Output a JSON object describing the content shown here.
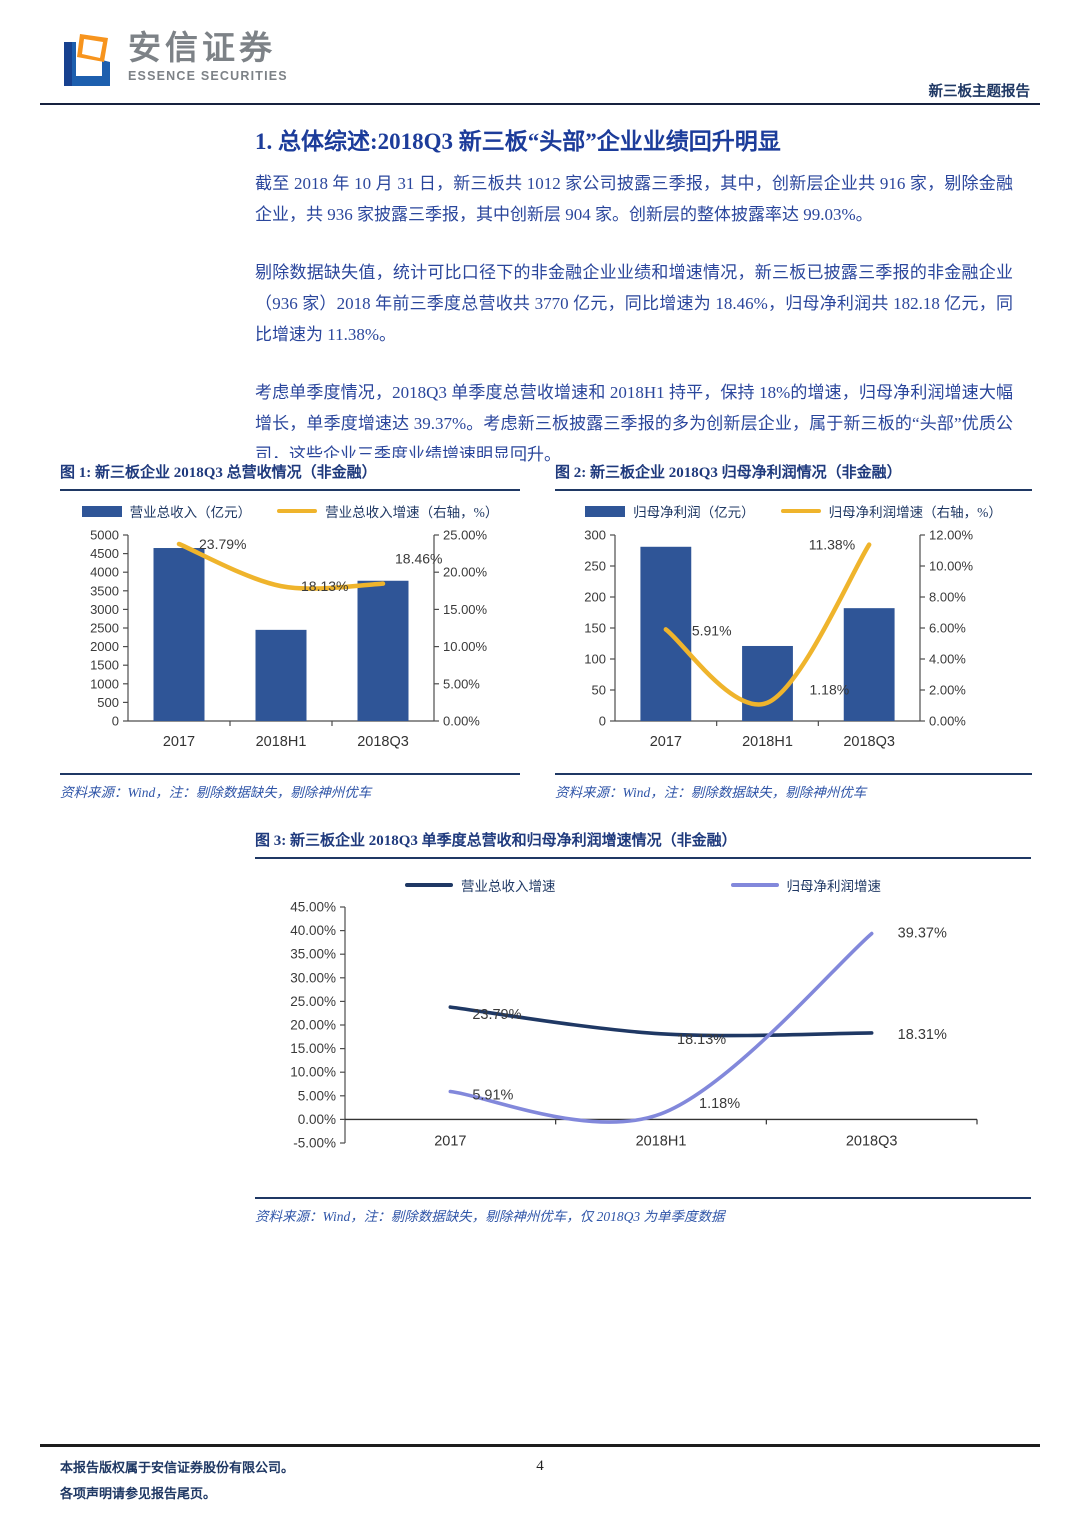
{
  "header": {
    "brand_cn": "安信证券",
    "brand_en": "ESSENCE SECURITIES",
    "report_type": "新三板主题报告"
  },
  "section": {
    "title": "1. 总体综述:2018Q3 新三板“头部”企业业绩回升明显",
    "paragraphs": [
      "截至 2018 年 10 月 31 日，新三板共 1012 家公司披露三季报，其中，创新层企业共 916 家，剔除金融企业，共 936 家披露三季报，其中创新层 904 家。创新层的整体披露率达 99.03%。",
      "剔除数据缺失值，统计可比口径下的非金融企业业绩和增速情况，新三板已披露三季报的非金融企业（936 家）2018 年前三季度总营收共 3770 亿元，同比增速为 18.46%，归母净利润共 182.18 亿元，同比增速为 11.38%。",
      "考虑单季度情况，2018Q3 单季度总营收增速和 2018H1 持平，保持 18%的增速，归母净利润增速大幅增长，单季度增速达 39.37%。考虑新三板披露三季报的多为创新层企业，属于新三板的“头部”优质公司，这些企业三季度业绩增速明显回升。"
    ]
  },
  "chart_data": [
    {
      "type": "bar",
      "subtype": "combo-bar-line",
      "title": "图 1: 新三板企业 2018Q3 总营收情况（非金融）",
      "categories": [
        "2017",
        "2018H1",
        "2018Q3"
      ],
      "series": [
        {
          "name": "营业总收入（亿元）",
          "kind": "bar",
          "axis": "left",
          "values": [
            4650,
            2450,
            3770
          ],
          "color": "#2F5597"
        },
        {
          "name": "营业总收入增速（右轴，%）",
          "kind": "line",
          "axis": "right",
          "values": [
            23.79,
            18.13,
            18.46
          ],
          "color": "#EFB42C",
          "labels": [
            "23.79%",
            "18.13%",
            "18.46%"
          ]
        }
      ],
      "left_axis": {
        "min": 0,
        "max": 5000,
        "step": 500,
        "format": "int"
      },
      "right_axis": {
        "min": 0,
        "max": 25,
        "step": 5,
        "format": "percent"
      },
      "grid": false,
      "legend_position": "top",
      "source": "资料来源：Wind，注：剔除数据缺失，剔除神州优车"
    },
    {
      "type": "bar",
      "subtype": "combo-bar-line",
      "title": "图 2: 新三板企业 2018Q3 归母净利润情况（非金融）",
      "categories": [
        "2017",
        "2018H1",
        "2018Q3"
      ],
      "series": [
        {
          "name": "归母净利润（亿元）",
          "kind": "bar",
          "axis": "left",
          "values": [
            281,
            121,
            182
          ],
          "color": "#2F5597"
        },
        {
          "name": "归母净利润增速（右轴，%）",
          "kind": "line",
          "axis": "right",
          "values": [
            5.91,
            1.18,
            11.38
          ],
          "color": "#EFB42C",
          "labels": [
            "5.91%",
            "1.18%",
            "11.38%"
          ]
        }
      ],
      "left_axis": {
        "min": 0,
        "max": 300,
        "step": 50,
        "format": "int"
      },
      "right_axis": {
        "min": 0,
        "max": 12,
        "step": 2,
        "format": "percent"
      },
      "grid": false,
      "legend_position": "top",
      "source": "资料来源：Wind，注：剔除数据缺失，剔除神州优车"
    },
    {
      "type": "line",
      "title": "图 3: 新三板企业 2018Q3 单季度总营收和归母净利润增速情况（非金融）",
      "categories": [
        "2017",
        "2018H1",
        "2018Q3"
      ],
      "series": [
        {
          "name": "营业总收入增速",
          "values": [
            23.79,
            18.13,
            18.31
          ],
          "color": "#1F3864",
          "labels": [
            "23.79%",
            "18.13%",
            "18.31%"
          ]
        },
        {
          "name": "归母净利润增速",
          "values": [
            5.91,
            1.18,
            39.37
          ],
          "color": "#8288DB",
          "labels": [
            "5.91%",
            "1.18%",
            "39.37%"
          ]
        }
      ],
      "y_axis": {
        "min": -5,
        "max": 45,
        "step": 5,
        "format": "percent"
      },
      "grid": false,
      "legend_position": "top",
      "source": "资料来源：Wind，注：剔除数据缺失，剔除神州优车，仅 2018Q3 为单季度数据"
    }
  ],
  "footer": {
    "copyright_line1": "本报告版权属于安信证券股份有限公司。",
    "copyright_line2": "各项声明请参见报告尾页。",
    "page_number": "4"
  }
}
